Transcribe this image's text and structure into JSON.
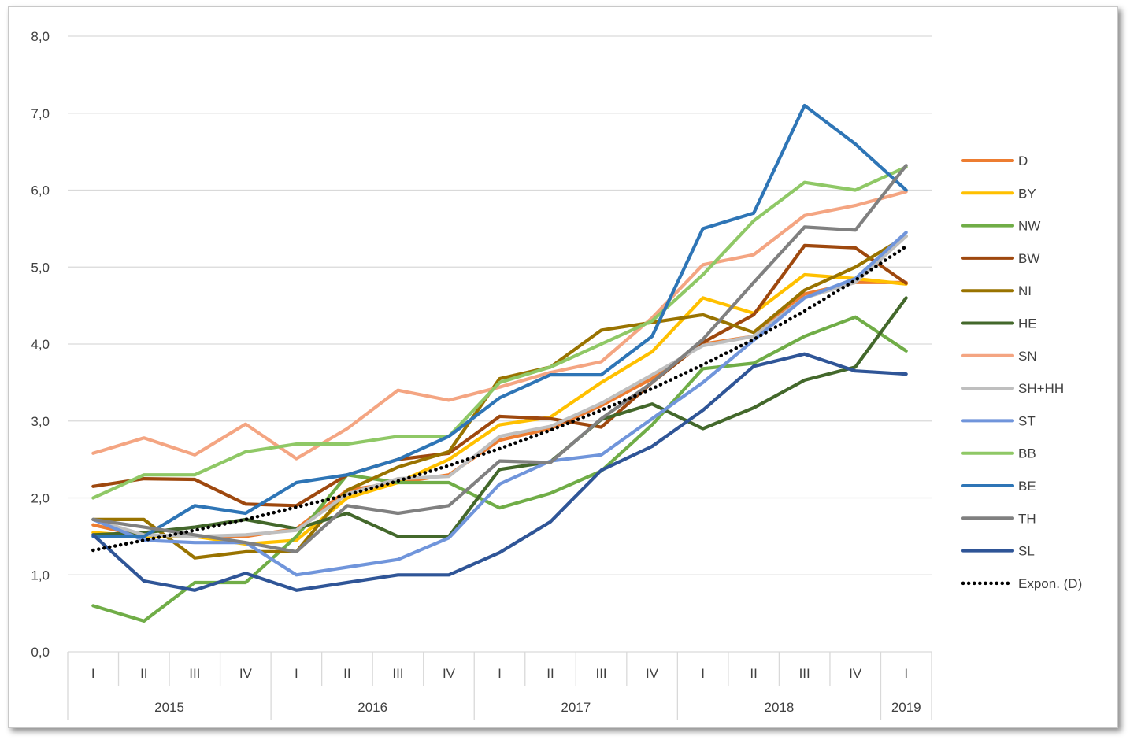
{
  "chart_data": {
    "type": "line",
    "title": "",
    "xlabel": "",
    "ylabel": "",
    "ylim": [
      0,
      8
    ],
    "yticks": [
      "0,0",
      "1,0",
      "2,0",
      "3,0",
      "4,0",
      "5,0",
      "6,0",
      "7,0",
      "8,0"
    ],
    "quarters": [
      "I",
      "II",
      "III",
      "IV",
      "I",
      "II",
      "III",
      "IV",
      "I",
      "II",
      "III",
      "IV",
      "I",
      "II",
      "III",
      "IV",
      "I"
    ],
    "years": [
      {
        "label": "2015",
        "quarters": 4
      },
      {
        "label": "2016",
        "quarters": 4
      },
      {
        "label": "2017",
        "quarters": 4
      },
      {
        "label": "2018",
        "quarters": 4
      },
      {
        "label": "2019",
        "quarters": 1
      }
    ],
    "grid": true,
    "legend_position": "right",
    "series": [
      {
        "name": "D",
        "color": "#ED7D31",
        "dash": false,
        "values": [
          1.65,
          1.5,
          1.5,
          1.5,
          1.6,
          2.1,
          2.2,
          2.3,
          2.75,
          2.9,
          3.2,
          3.55,
          4.0,
          4.1,
          4.65,
          4.8,
          4.8
        ]
      },
      {
        "name": "BY",
        "color": "#FFC000",
        "dash": false,
        "values": [
          1.55,
          1.5,
          1.5,
          1.4,
          1.45,
          2.0,
          2.2,
          2.5,
          2.95,
          3.05,
          3.5,
          3.9,
          4.6,
          4.4,
          4.9,
          4.85,
          4.78
        ]
      },
      {
        "name": "NW",
        "color": "#70AD47",
        "dash": false,
        "values": [
          0.6,
          0.4,
          0.9,
          0.9,
          1.5,
          2.3,
          2.2,
          2.2,
          1.87,
          2.06,
          2.35,
          2.95,
          3.68,
          3.75,
          4.1,
          4.35,
          3.91
        ]
      },
      {
        "name": "BW",
        "color": "#9E480E",
        "dash": false,
        "values": [
          2.15,
          2.25,
          2.24,
          1.92,
          1.9,
          2.3,
          2.5,
          2.58,
          3.06,
          3.03,
          2.92,
          3.5,
          4.02,
          4.38,
          5.28,
          5.25,
          4.79
        ]
      },
      {
        "name": "NI",
        "color": "#997300",
        "dash": false,
        "values": [
          1.72,
          1.72,
          1.22,
          1.3,
          1.3,
          2.1,
          2.4,
          2.6,
          3.55,
          3.7,
          4.18,
          4.28,
          4.38,
          4.15,
          4.7,
          5.0,
          5.4
        ]
      },
      {
        "name": "HE",
        "color": "#43682B",
        "dash": false,
        "values": [
          1.52,
          1.55,
          1.62,
          1.72,
          1.6,
          1.8,
          1.5,
          1.5,
          2.37,
          2.47,
          3.02,
          3.22,
          2.9,
          3.17,
          3.53,
          3.7,
          4.6
        ]
      },
      {
        "name": "SN",
        "color": "#F4A582",
        "dash": false,
        "values": [
          2.58,
          2.78,
          2.56,
          2.96,
          2.51,
          2.9,
          3.4,
          3.27,
          3.44,
          3.63,
          3.77,
          4.34,
          5.03,
          5.16,
          5.67,
          5.8,
          5.98
        ]
      },
      {
        "name": "SH+HH",
        "color": "#BFBFBF",
        "dash": false,
        "values": [
          1.72,
          1.52,
          1.5,
          1.52,
          1.58,
          2.05,
          2.25,
          2.28,
          2.8,
          2.93,
          3.23,
          3.6,
          3.98,
          4.1,
          4.6,
          4.8,
          5.4
        ]
      },
      {
        "name": "ST",
        "color": "#7095DB",
        "dash": false,
        "values": [
          1.72,
          1.45,
          1.42,
          1.42,
          1.0,
          1.1,
          1.2,
          1.48,
          2.18,
          2.48,
          2.56,
          3.03,
          3.5,
          4.05,
          4.6,
          4.85,
          5.45
        ]
      },
      {
        "name": "BB",
        "color": "#8FC866",
        "dash": false,
        "values": [
          2.0,
          2.3,
          2.3,
          2.6,
          2.7,
          2.7,
          2.8,
          2.8,
          3.5,
          3.7,
          4.0,
          4.3,
          4.9,
          5.6,
          6.1,
          6.0,
          6.3
        ]
      },
      {
        "name": "BE",
        "color": "#2E75B6",
        "dash": false,
        "values": [
          1.5,
          1.5,
          1.9,
          1.8,
          2.2,
          2.3,
          2.5,
          2.8,
          3.3,
          3.6,
          3.6,
          4.1,
          5.5,
          5.7,
          7.1,
          6.6,
          6.0
        ]
      },
      {
        "name": "TH",
        "color": "#808080",
        "dash": false,
        "values": [
          1.72,
          1.62,
          1.52,
          1.42,
          1.3,
          1.9,
          1.8,
          1.9,
          2.48,
          2.46,
          3.03,
          3.5,
          4.06,
          4.8,
          5.52,
          5.48,
          6.32
        ]
      },
      {
        "name": "SL",
        "color": "#2F5597",
        "dash": false,
        "values": [
          1.52,
          0.92,
          0.8,
          1.02,
          0.8,
          0.9,
          1.0,
          1.0,
          1.29,
          1.69,
          2.36,
          2.67,
          3.14,
          3.71,
          3.87,
          3.65,
          3.61
        ]
      },
      {
        "name": "Expon. (D)",
        "color": "#000000",
        "dash": true,
        "values": [
          1.32,
          1.45,
          1.58,
          1.72,
          1.88,
          2.04,
          2.22,
          2.42,
          2.64,
          2.88,
          3.14,
          3.42,
          3.73,
          4.06,
          4.43,
          4.83,
          5.27
        ]
      }
    ]
  }
}
